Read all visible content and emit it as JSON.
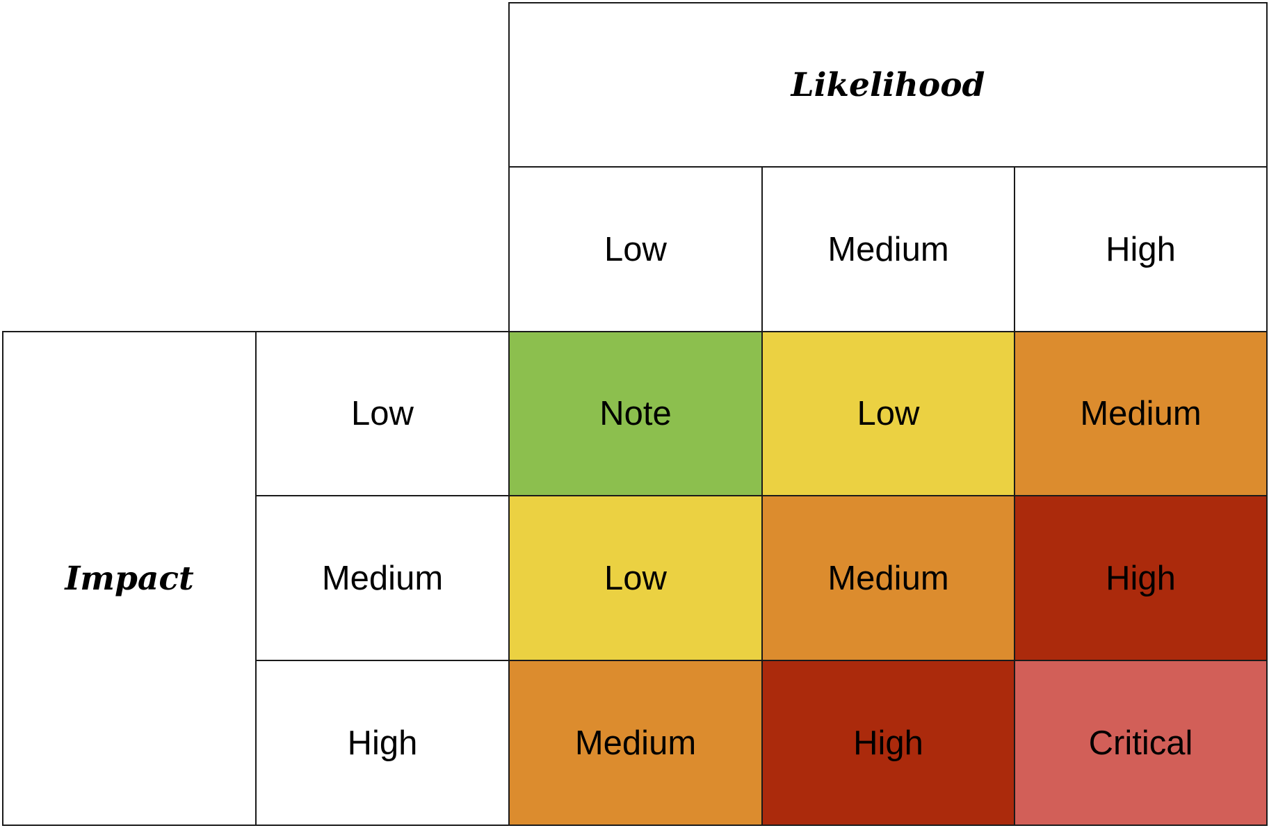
{
  "likelihood_label": "Likelihood",
  "impact_label": "Impact",
  "likelihood_levels": [
    "Low",
    "Medium",
    "High"
  ],
  "impact_levels": [
    "Low",
    "Medium",
    "High"
  ],
  "matrix": [
    [
      {
        "label": "Note",
        "color": "#8cbf4e"
      },
      {
        "label": "Low",
        "color": "#ebd142"
      },
      {
        "label": "Medium",
        "color": "#dc8c2e"
      }
    ],
    [
      {
        "label": "Low",
        "color": "#ebd142"
      },
      {
        "label": "Medium",
        "color": "#dc8c2e"
      },
      {
        "label": "High",
        "color": "#ab2a0c"
      }
    ],
    [
      {
        "label": "Medium",
        "color": "#dc8c2e"
      },
      {
        "label": "High",
        "color": "#ab2a0c"
      },
      {
        "label": "Critical",
        "color": "#d25f58"
      }
    ]
  ]
}
